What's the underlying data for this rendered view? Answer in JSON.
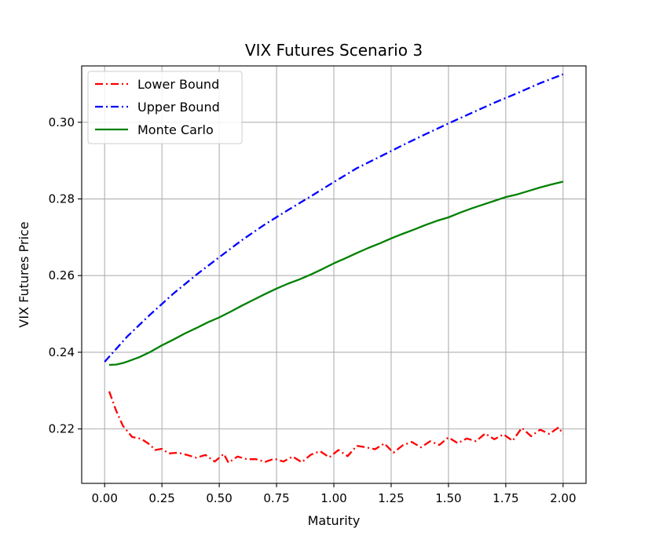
{
  "chart_data": {
    "type": "line",
    "title": "VIX Futures Scenario 3",
    "xlabel": "Maturity",
    "ylabel": "VIX Futures Price",
    "xlim": [
      -0.1,
      2.1
    ],
    "ylim": [
      0.2058,
      0.3147
    ],
    "x_ticks": [
      0.0,
      0.25,
      0.5,
      0.75,
      1.0,
      1.25,
      1.5,
      1.75,
      2.0
    ],
    "x_tick_labels": [
      "0.00",
      "0.25",
      "0.50",
      "0.75",
      "1.00",
      "1.25",
      "1.50",
      "1.75",
      "2.00"
    ],
    "y_ticks": [
      0.22,
      0.24,
      0.26,
      0.28,
      0.3
    ],
    "y_tick_labels": [
      "0.22",
      "0.24",
      "0.26",
      "0.28",
      "0.30"
    ],
    "grid": true,
    "legend_position": "top-left",
    "series": [
      {
        "name": "Lower Bound",
        "color": "#ff0000",
        "style": "dashdot",
        "x": [
          0.02,
          0.05,
          0.08,
          0.12,
          0.16,
          0.2,
          0.22,
          0.25,
          0.28,
          0.32,
          0.36,
          0.4,
          0.44,
          0.48,
          0.52,
          0.54,
          0.58,
          0.62,
          0.66,
          0.7,
          0.74,
          0.78,
          0.82,
          0.86,
          0.9,
          0.94,
          0.98,
          1.02,
          1.06,
          1.1,
          1.14,
          1.18,
          1.22,
          1.26,
          1.3,
          1.34,
          1.38,
          1.42,
          1.46,
          1.5,
          1.54,
          1.58,
          1.62,
          1.66,
          1.7,
          1.74,
          1.78,
          1.82,
          1.86,
          1.9,
          1.94,
          1.98,
          2.0
        ],
        "y": [
          0.2298,
          0.2248,
          0.2208,
          0.2179,
          0.2174,
          0.2158,
          0.2145,
          0.2148,
          0.2136,
          0.2138,
          0.2132,
          0.2125,
          0.2132,
          0.2115,
          0.2135,
          0.2112,
          0.2128,
          0.2121,
          0.2121,
          0.2114,
          0.2122,
          0.2115,
          0.2128,
          0.2113,
          0.2133,
          0.2142,
          0.2126,
          0.2145,
          0.2129,
          0.2156,
          0.2152,
          0.2147,
          0.2162,
          0.2138,
          0.2157,
          0.2166,
          0.2152,
          0.2168,
          0.2158,
          0.2178,
          0.2163,
          0.2175,
          0.2168,
          0.2188,
          0.2173,
          0.2186,
          0.2169,
          0.2203,
          0.2181,
          0.2198,
          0.2187,
          0.2204,
          0.2187
        ]
      },
      {
        "name": "Upper Bound",
        "color": "#0000ff",
        "style": "dashdot",
        "x": [
          0.0,
          0.1,
          0.2,
          0.3,
          0.4,
          0.5,
          0.6,
          0.7,
          0.8,
          0.9,
          1.0,
          1.1,
          1.2,
          1.3,
          1.4,
          1.5,
          1.6,
          1.7,
          1.8,
          1.9,
          2.0
        ],
        "y": [
          0.2375,
          0.2442,
          0.2499,
          0.2553,
          0.2602,
          0.2648,
          0.2693,
          0.2734,
          0.2771,
          0.2807,
          0.2844,
          0.288,
          0.291,
          0.294,
          0.2969,
          0.2997,
          0.3024,
          0.3051,
          0.3076,
          0.3102,
          0.3125
        ]
      },
      {
        "name": "Monte Carlo",
        "color": "#008000",
        "style": "solid",
        "x": [
          0.02,
          0.05,
          0.08,
          0.1,
          0.15,
          0.2,
          0.25,
          0.3,
          0.35,
          0.4,
          0.45,
          0.5,
          0.55,
          0.6,
          0.65,
          0.7,
          0.75,
          0.8,
          0.85,
          0.9,
          0.95,
          1.0,
          1.05,
          1.1,
          1.15,
          1.2,
          1.25,
          1.3,
          1.35,
          1.4,
          1.45,
          1.5,
          1.55,
          1.6,
          1.65,
          1.7,
          1.75,
          1.8,
          1.85,
          1.9,
          1.95,
          2.0
        ],
        "y": [
          0.2367,
          0.2368,
          0.2372,
          0.2376,
          0.2387,
          0.2401,
          0.2418,
          0.2433,
          0.2449,
          0.2463,
          0.2478,
          0.2491,
          0.2506,
          0.2522,
          0.2537,
          0.2552,
          0.2566,
          0.2579,
          0.259,
          0.2603,
          0.2617,
          0.2632,
          0.2645,
          0.2659,
          0.2672,
          0.2684,
          0.2697,
          0.2709,
          0.272,
          0.2732,
          0.2743,
          0.2752,
          0.2764,
          0.2775,
          0.2785,
          0.2795,
          0.2805,
          0.2812,
          0.2821,
          0.283,
          0.2838,
          0.2845
        ]
      }
    ]
  }
}
